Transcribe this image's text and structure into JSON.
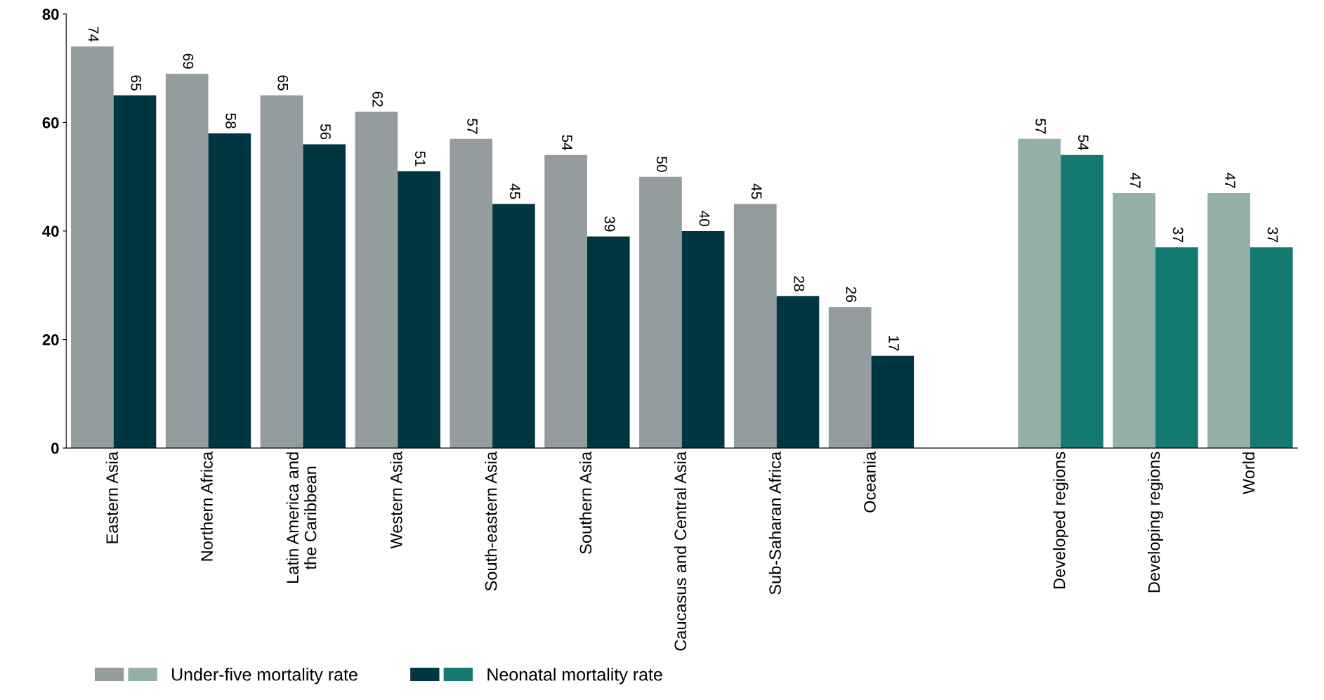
{
  "chart_data": {
    "type": "bar",
    "categories": [
      "Eastern Asia",
      "Northern Africa",
      "Latin America and\nthe Caribbean",
      "Western Asia",
      "South-eastern Asia",
      "Southern Asia",
      "Caucasus and Central Asia",
      "Sub-Saharan Africa",
      "Oceania",
      null,
      "Developed regions",
      "Developing regions",
      "World"
    ],
    "series": [
      {
        "name": "Under-five mortality rate",
        "color": "#949c9e",
        "colors": [
          "#949c9e",
          "#949c9e",
          "#949c9e",
          "#949c9e",
          "#949c9e",
          "#949c9e",
          "#949c9e",
          "#949c9e",
          "#949c9e",
          null,
          "#94aea8",
          "#94aea8",
          "#94aea8"
        ],
        "values": [
          74,
          69,
          65,
          62,
          57,
          54,
          50,
          45,
          26,
          null,
          57,
          47,
          47
        ]
      },
      {
        "name": "Neonatal mortality rate",
        "color": "#003641",
        "colors": [
          "#003641",
          "#003641",
          "#003641",
          "#003641",
          "#003641",
          "#003641",
          "#003641",
          "#003641",
          "#003641",
          null,
          "#127a70",
          "#127a70",
          "#127a70"
        ],
        "values": [
          65,
          58,
          56,
          51,
          45,
          39,
          40,
          28,
          17,
          null,
          54,
          37,
          37
        ]
      }
    ],
    "ylim": [
      0,
      80
    ],
    "yticks": [
      0,
      20,
      40,
      60,
      80
    ],
    "grid": false,
    "legend": "bottom",
    "data_labels": true
  }
}
